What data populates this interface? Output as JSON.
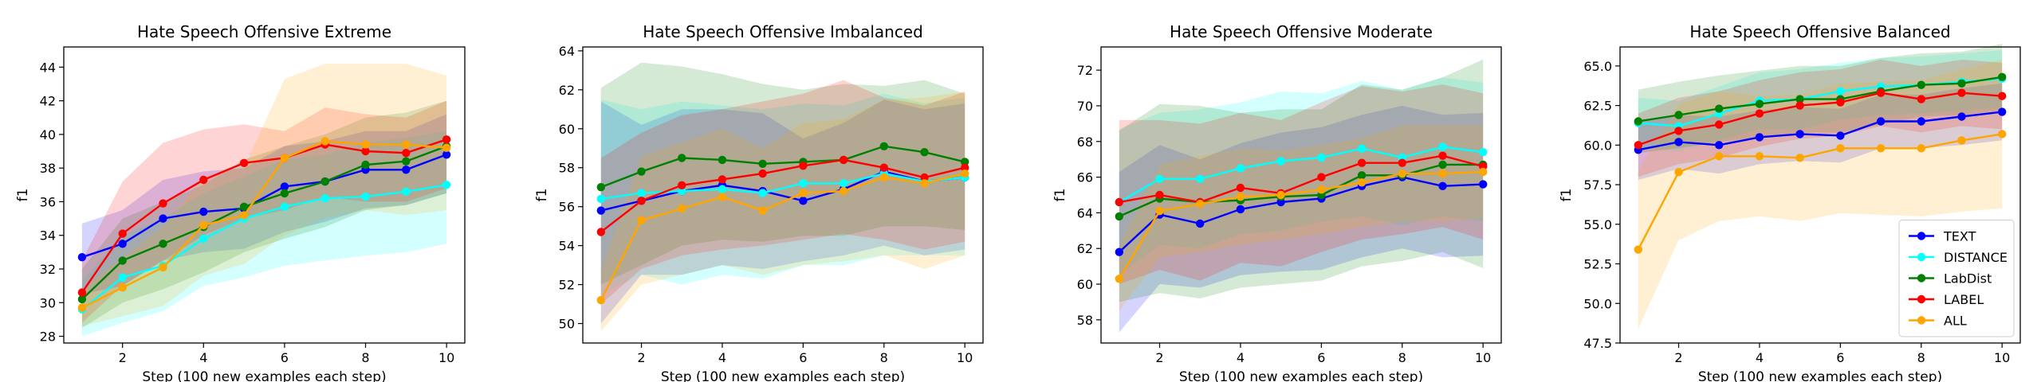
{
  "chart_data": [
    {
      "type": "line",
      "title": "Hate Speech Offensive Extreme",
      "xlabel": "Step (100 new examples each step)",
      "ylabel": "f1",
      "x": [
        1,
        2,
        3,
        4,
        5,
        6,
        7,
        8,
        9,
        10
      ],
      "xlim": [
        0.55,
        10.45
      ],
      "ylim": [
        27.6,
        45.2
      ],
      "xticks": [
        2,
        4,
        6,
        8,
        10
      ],
      "yticks": [
        28,
        30,
        32,
        34,
        36,
        38,
        40,
        42,
        44
      ],
      "show_legend": false,
      "series": [
        {
          "name": "TEXT",
          "color": "#0000ff",
          "values": [
            32.7,
            33.5,
            35.0,
            35.4,
            35.6,
            36.9,
            37.2,
            37.9,
            37.9,
            38.8
          ],
          "lower": [
            30.5,
            31.0,
            32.5,
            33.0,
            33.2,
            34.2,
            34.8,
            35.6,
            35.8,
            36.5
          ],
          "upper": [
            34.7,
            35.5,
            37.3,
            37.8,
            38.0,
            39.3,
            39.6,
            40.2,
            40.2,
            41.2
          ]
        },
        {
          "name": "DISTANCE",
          "color": "#00ffff",
          "values": [
            29.6,
            31.5,
            32.2,
            33.8,
            35.0,
            35.7,
            36.2,
            36.3,
            36.6,
            37.0
          ],
          "lower": [
            28.0,
            28.8,
            29.5,
            31.0,
            31.5,
            32.2,
            32.5,
            32.8,
            33.0,
            33.5
          ],
          "upper": [
            31.3,
            34.0,
            35.0,
            36.5,
            37.5,
            38.5,
            38.8,
            39.5,
            39.8,
            40.2
          ]
        },
        {
          "name": "LabDist",
          "color": "#008000",
          "values": [
            30.2,
            32.5,
            33.5,
            34.5,
            35.7,
            36.5,
            37.2,
            38.2,
            38.4,
            39.3
          ],
          "lower": [
            28.5,
            30.0,
            30.8,
            31.8,
            33.0,
            33.8,
            34.5,
            35.5,
            35.8,
            36.5
          ],
          "upper": [
            32.0,
            35.0,
            36.0,
            37.0,
            38.5,
            39.3,
            40.0,
            41.0,
            41.3,
            42.0
          ]
        },
        {
          "name": "LABEL",
          "color": "#ff0000",
          "values": [
            30.6,
            34.1,
            35.9,
            37.3,
            38.3,
            38.6,
            39.4,
            39.0,
            38.9,
            39.7
          ],
          "lower": [
            28.8,
            31.0,
            32.5,
            34.0,
            35.0,
            35.5,
            36.3,
            36.0,
            36.0,
            36.8
          ],
          "upper": [
            32.5,
            37.2,
            39.5,
            40.3,
            40.6,
            40.2,
            41.6,
            41.2,
            41.0,
            42.0
          ]
        },
        {
          "name": "ALL",
          "color": "#ffa500",
          "values": [
            29.7,
            30.9,
            32.1,
            34.6,
            35.2,
            38.6,
            39.6,
            39.4,
            39.4,
            39.2
          ],
          "lower": [
            28.6,
            29.2,
            29.8,
            31.6,
            32.3,
            34.0,
            35.0,
            35.5,
            35.2,
            35.5
          ],
          "upper": [
            30.8,
            32.7,
            34.5,
            37.5,
            38.0,
            43.3,
            44.2,
            44.2,
            44.2,
            43.5
          ]
        }
      ]
    },
    {
      "type": "line",
      "title": "Hate Speech Offensive Imbalanced",
      "xlabel": "Step (100 new examples each step)",
      "ylabel": "f1",
      "x": [
        1,
        2,
        3,
        4,
        5,
        6,
        7,
        8,
        9,
        10
      ],
      "xlim": [
        0.55,
        10.45
      ],
      "ylim": [
        49.0,
        64.2
      ],
      "xticks": [
        2,
        4,
        6,
        8,
        10
      ],
      "yticks": [
        50,
        52,
        54,
        56,
        58,
        60,
        62,
        64
      ],
      "show_legend": false,
      "series": [
        {
          "name": "TEXT",
          "color": "#0000ff",
          "values": [
            55.8,
            56.3,
            56.8,
            57.1,
            56.8,
            56.3,
            56.9,
            57.8,
            57.3,
            57.5
          ],
          "lower": [
            50.0,
            52.5,
            52.5,
            53.0,
            52.8,
            53.2,
            53.5,
            54.0,
            53.5,
            53.8
          ],
          "upper": [
            61.4,
            60.2,
            61.0,
            61.0,
            60.8,
            59.5,
            60.3,
            61.5,
            61.0,
            61.3
          ]
        },
        {
          "name": "DISTANCE",
          "color": "#00ffff",
          "values": [
            56.4,
            56.7,
            56.8,
            56.9,
            56.7,
            57.2,
            57.2,
            57.7,
            57.3,
            57.5
          ],
          "lower": [
            51.5,
            52.5,
            52.0,
            52.5,
            52.3,
            53.0,
            53.0,
            53.5,
            53.5,
            53.5
          ],
          "upper": [
            61.5,
            61.0,
            61.4,
            61.2,
            61.0,
            61.3,
            61.2,
            61.8,
            61.3,
            61.6
          ]
        },
        {
          "name": "LabDist",
          "color": "#008000",
          "values": [
            57.0,
            57.8,
            58.5,
            58.4,
            58.2,
            58.3,
            58.4,
            59.1,
            58.8,
            58.3
          ],
          "lower": [
            52.0,
            53.0,
            54.0,
            54.3,
            54.2,
            54.5,
            54.5,
            55.0,
            55.0,
            54.8
          ],
          "upper": [
            62.1,
            63.4,
            63.2,
            62.8,
            62.3,
            62.0,
            62.3,
            62.2,
            62.5,
            61.8
          ]
        },
        {
          "name": "LABEL",
          "color": "#ff0000",
          "values": [
            54.7,
            56.3,
            57.1,
            57.4,
            57.7,
            58.1,
            58.4,
            58.0,
            57.5,
            58.0
          ],
          "lower": [
            51.0,
            52.8,
            53.5,
            53.8,
            54.0,
            54.3,
            54.6,
            54.3,
            53.8,
            54.2
          ],
          "upper": [
            58.5,
            59.8,
            60.7,
            61.0,
            61.4,
            61.8,
            62.5,
            61.6,
            61.2,
            61.9
          ]
        },
        {
          "name": "ALL",
          "color": "#ffa500",
          "values": [
            51.2,
            55.3,
            55.9,
            56.5,
            55.8,
            56.7,
            56.8,
            57.5,
            57.2,
            57.7
          ],
          "lower": [
            49.6,
            52.0,
            52.5,
            53.0,
            52.5,
            53.0,
            53.2,
            53.5,
            52.8,
            53.5
          ],
          "upper": [
            52.7,
            58.6,
            59.3,
            60.0,
            59.0,
            60.3,
            60.5,
            61.5,
            61.6,
            61.9
          ]
        }
      ]
    },
    {
      "type": "line",
      "title": "Hate Speech Offensive Moderate",
      "xlabel": "Step (100 new examples each step)",
      "ylabel": "f1",
      "x": [
        1,
        2,
        3,
        4,
        5,
        6,
        7,
        8,
        9,
        10
      ],
      "xlim": [
        0.55,
        10.45
      ],
      "ylim": [
        56.7,
        73.3
      ],
      "xticks": [
        2,
        4,
        6,
        8,
        10
      ],
      "yticks": [
        58,
        60,
        62,
        64,
        66,
        68,
        70,
        72
      ],
      "show_legend": false,
      "series": [
        {
          "name": "TEXT",
          "color": "#0000ff",
          "values": [
            61.8,
            63.9,
            63.4,
            64.2,
            64.6,
            64.8,
            65.5,
            66.0,
            65.5,
            65.6
          ],
          "lower": [
            57.3,
            60.0,
            59.8,
            60.5,
            60.7,
            60.8,
            61.5,
            62.0,
            61.5,
            61.6
          ],
          "upper": [
            66.3,
            67.8,
            67.0,
            67.9,
            68.5,
            68.8,
            69.5,
            70.0,
            69.5,
            69.6
          ]
        },
        {
          "name": "DISTANCE",
          "color": "#00ffff",
          "values": [
            64.6,
            65.9,
            65.9,
            66.5,
            66.9,
            67.1,
            67.6,
            67.1,
            67.7,
            67.4
          ],
          "lower": [
            60.5,
            62.2,
            62.0,
            62.8,
            63.0,
            63.5,
            63.8,
            63.3,
            63.8,
            63.5
          ],
          "upper": [
            68.7,
            69.6,
            69.8,
            70.2,
            70.8,
            70.7,
            71.4,
            70.9,
            71.6,
            71.3
          ]
        },
        {
          "name": "LabDist",
          "color": "#008000",
          "values": [
            63.8,
            64.8,
            64.6,
            64.7,
            64.9,
            65.0,
            66.1,
            66.1,
            66.7,
            66.7
          ],
          "lower": [
            59.0,
            59.5,
            59.2,
            59.8,
            60.0,
            60.2,
            61.0,
            61.3,
            61.8,
            60.9
          ],
          "upper": [
            68.6,
            70.1,
            70.0,
            69.6,
            69.8,
            69.8,
            71.2,
            70.9,
            71.6,
            72.6
          ]
        },
        {
          "name": "LABEL",
          "color": "#ff0000",
          "values": [
            64.6,
            65.0,
            64.6,
            65.4,
            65.1,
            66.0,
            66.8,
            66.8,
            67.2,
            66.6
          ],
          "lower": [
            60.0,
            60.8,
            60.2,
            61.2,
            61.0,
            61.8,
            62.5,
            62.8,
            63.2,
            62.5
          ],
          "upper": [
            69.2,
            69.2,
            69.0,
            69.6,
            69.2,
            70.2,
            71.1,
            70.8,
            71.2,
            70.7
          ]
        },
        {
          "name": "ALL",
          "color": "#ffa500",
          "values": [
            60.3,
            64.1,
            64.5,
            64.9,
            65.0,
            65.3,
            65.7,
            66.2,
            66.2,
            66.3
          ],
          "lower": [
            58.5,
            61.5,
            61.8,
            62.2,
            62.5,
            62.8,
            63.2,
            63.5,
            63.5,
            63.7
          ],
          "upper": [
            62.1,
            66.7,
            67.2,
            67.6,
            67.5,
            67.8,
            68.2,
            68.9,
            68.9,
            68.9
          ]
        }
      ]
    },
    {
      "type": "line",
      "title": "Hate Speech Offensive Balanced",
      "xlabel": "Step (100 new examples each step)",
      "ylabel": "f1",
      "x": [
        1,
        2,
        3,
        4,
        5,
        6,
        7,
        8,
        9,
        10
      ],
      "xlim": [
        0.55,
        10.45
      ],
      "ylim": [
        47.5,
        66.2
      ],
      "xticks": [
        2,
        4,
        6,
        8,
        10
      ],
      "yticks": [
        47.5,
        50.0,
        52.5,
        55.0,
        57.5,
        60.0,
        62.5,
        65.0
      ],
      "show_legend": true,
      "legend_loc": "lower-right",
      "series": [
        {
          "name": "TEXT",
          "color": "#0000ff",
          "values": [
            59.7,
            60.2,
            60.0,
            60.5,
            60.7,
            60.6,
            61.5,
            61.5,
            61.8,
            62.1
          ],
          "lower": [
            57.8,
            58.5,
            58.2,
            58.8,
            59.0,
            58.9,
            59.8,
            59.8,
            60.0,
            60.3
          ],
          "upper": [
            61.6,
            61.9,
            61.8,
            62.2,
            62.4,
            62.3,
            63.2,
            63.2,
            63.6,
            63.9
          ]
        },
        {
          "name": "DISTANCE",
          "color": "#00ffff",
          "values": [
            61.4,
            61.2,
            62.0,
            62.8,
            62.9,
            63.4,
            63.7,
            63.8,
            64.0,
            64.2
          ],
          "lower": [
            59.8,
            59.6,
            60.3,
            61.0,
            61.0,
            61.6,
            61.9,
            62.0,
            62.2,
            62.4
          ],
          "upper": [
            63.0,
            62.8,
            63.7,
            64.6,
            64.8,
            65.2,
            65.5,
            65.6,
            65.8,
            66.0
          ]
        },
        {
          "name": "LabDist",
          "color": "#008000",
          "values": [
            61.5,
            61.9,
            62.3,
            62.6,
            62.9,
            62.9,
            63.4,
            63.8,
            63.9,
            64.3
          ],
          "lower": [
            59.5,
            59.8,
            60.2,
            60.5,
            60.8,
            60.8,
            61.3,
            61.8,
            61.9,
            62.2
          ],
          "upper": [
            63.5,
            64.0,
            64.4,
            64.7,
            65.0,
            65.0,
            65.5,
            65.8,
            65.9,
            66.4
          ]
        },
        {
          "name": "LABEL",
          "color": "#ff0000",
          "values": [
            60.0,
            60.9,
            61.3,
            62.0,
            62.5,
            62.7,
            63.3,
            62.9,
            63.3,
            63.1
          ],
          "lower": [
            58.0,
            58.8,
            59.2,
            59.9,
            60.4,
            60.6,
            61.2,
            60.8,
            61.2,
            61.0
          ],
          "upper": [
            62.0,
            63.0,
            63.4,
            64.1,
            64.6,
            64.8,
            65.4,
            65.0,
            65.4,
            65.2
          ]
        },
        {
          "name": "ALL",
          "color": "#ffa500",
          "values": [
            53.4,
            58.3,
            59.3,
            59.3,
            59.2,
            59.8,
            59.8,
            59.8,
            60.3,
            60.7
          ],
          "lower": [
            48.4,
            54.0,
            55.2,
            55.5,
            55.2,
            55.7,
            55.6,
            55.5,
            55.8,
            56.0
          ],
          "upper": [
            58.4,
            62.6,
            63.4,
            63.1,
            63.2,
            63.9,
            64.0,
            64.1,
            64.8,
            65.4
          ]
        }
      ]
    }
  ]
}
